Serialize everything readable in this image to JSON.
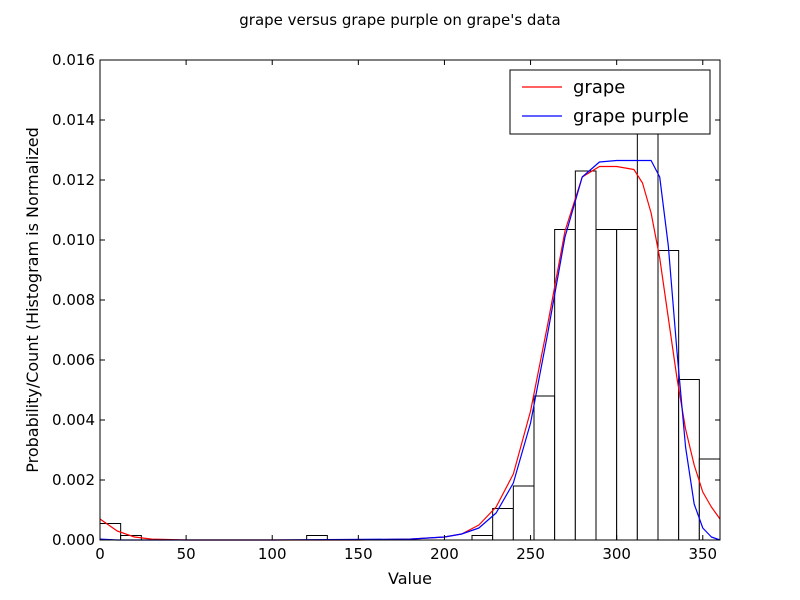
{
  "chart_data": {
    "type": "bar",
    "title": "grape versus grape purple on grape's data",
    "xlabel": "Value",
    "ylabel": "Probability/Count (Histogram is Normalized",
    "xlim": [
      0,
      360
    ],
    "ylim": [
      0,
      0.016
    ],
    "xticks": [
      0,
      50,
      100,
      150,
      200,
      250,
      300,
      350
    ],
    "yticks": [
      0.0,
      0.002,
      0.004,
      0.006,
      0.008,
      0.01,
      0.012,
      0.014,
      0.016
    ],
    "ytick_labels": [
      "0.000",
      "0.002",
      "0.004",
      "0.006",
      "0.008",
      "0.010",
      "0.012",
      "0.014",
      "0.016"
    ],
    "grid": false,
    "legend_position": "top-right",
    "histogram": {
      "bin_edges": [
        0,
        12,
        24,
        36,
        48,
        60,
        72,
        84,
        96,
        108,
        120,
        132,
        144,
        156,
        168,
        180,
        192,
        204,
        216,
        228,
        240,
        252,
        264,
        276,
        288,
        300,
        312,
        324,
        336,
        348,
        360
      ],
      "values": [
        0.00055,
        0.00015,
        0,
        0,
        0,
        0,
        0,
        0,
        0,
        0,
        0.00015,
        0,
        0,
        0,
        0,
        0,
        0,
        0,
        0.00015,
        0.00105,
        0.0018,
        0.0048,
        0.01035,
        0.0123,
        0.01035,
        0.01035,
        0.0137,
        0.00965,
        0.00535,
        0.0027
      ],
      "edge_color": "#000000",
      "fill_color": "#ffffff"
    },
    "series": [
      {
        "name": "grape",
        "color": "#ff0000",
        "x": [
          0,
          5,
          10,
          20,
          30,
          50,
          100,
          150,
          180,
          200,
          210,
          220,
          230,
          240,
          250,
          260,
          270,
          280,
          290,
          300,
          310,
          315,
          320,
          325,
          330,
          335,
          340,
          345,
          350,
          355,
          360
        ],
        "y": [
          0.0007,
          0.0005,
          0.0003,
          0.0001,
          3e-05,
          0,
          0,
          0,
          3e-05,
          0.0001,
          0.0002,
          0.0005,
          0.0011,
          0.0022,
          0.0043,
          0.0072,
          0.0103,
          0.0121,
          0.01245,
          0.01245,
          0.01235,
          0.0119,
          0.0109,
          0.0094,
          0.0074,
          0.0054,
          0.0037,
          0.0025,
          0.0016,
          0.0011,
          0.0007
        ]
      },
      {
        "name": "grape purple",
        "color": "#0000ff",
        "x": [
          0,
          10,
          100,
          180,
          200,
          210,
          220,
          230,
          240,
          250,
          260,
          270,
          280,
          290,
          300,
          310,
          320,
          325,
          330,
          335,
          340,
          345,
          350,
          355,
          360
        ],
        "y": [
          3e-05,
          0,
          0,
          3e-05,
          0.0001,
          0.0002,
          0.0004,
          0.0009,
          0.0019,
          0.0039,
          0.0069,
          0.0101,
          0.0121,
          0.0126,
          0.01265,
          0.01265,
          0.01265,
          0.0121,
          0.0098,
          0.0063,
          0.0031,
          0.0012,
          0.0004,
          0.0001,
          0
        ]
      }
    ]
  }
}
